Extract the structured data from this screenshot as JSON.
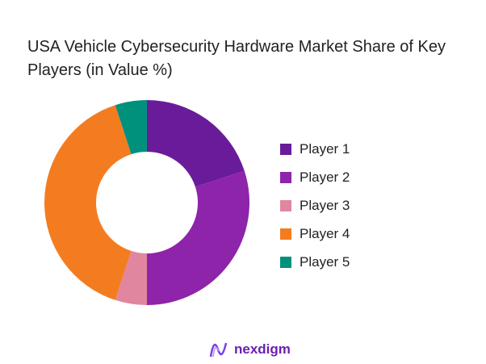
{
  "chart_data": {
    "type": "pie",
    "donut": true,
    "title": "USA Vehicle Cybersecurity Hardware Market Share of Key Players (in Value %)",
    "categories": [
      "Player 1",
      "Player 2",
      "Player 3",
      "Player 4",
      "Player 5"
    ],
    "values": [
      20,
      30,
      5,
      40,
      5
    ],
    "colors": [
      "#6a1b9a",
      "#8e24aa",
      "#e0869f",
      "#f47c20",
      "#00917c"
    ],
    "legend_position": "right"
  },
  "brand": "nexdigm"
}
